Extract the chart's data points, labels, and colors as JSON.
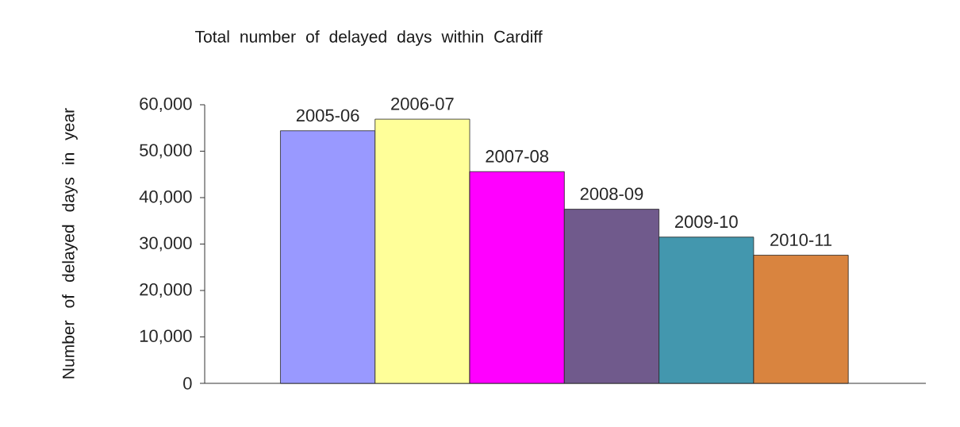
{
  "chart_data": {
    "type": "bar",
    "title": "Total number of delayed days within Cardiff",
    "ylabel": "Number of delayed days in year",
    "categories": [
      "2005-06",
      "2006-07",
      "2007-08",
      "2008-09",
      "2009-10",
      "2010-11"
    ],
    "values": [
      54400,
      56900,
      45600,
      37500,
      31500,
      27600
    ],
    "colors": [
      "#9999ff",
      "#ffff99",
      "#ff00ff",
      "#705a8c",
      "#4397ae",
      "#d9843f"
    ],
    "ylim": [
      0,
      60000
    ],
    "yticks": [
      0,
      {
        "value": 10000,
        "label": "10,000"
      },
      {
        "value": 20000,
        "label": "20,000"
      },
      {
        "value": 30000,
        "label": "30,000"
      },
      {
        "value": 40000,
        "label": "40,000"
      },
      {
        "value": 50000,
        "label": "50,000"
      },
      {
        "value": 60000,
        "label": "60,000"
      }
    ]
  }
}
